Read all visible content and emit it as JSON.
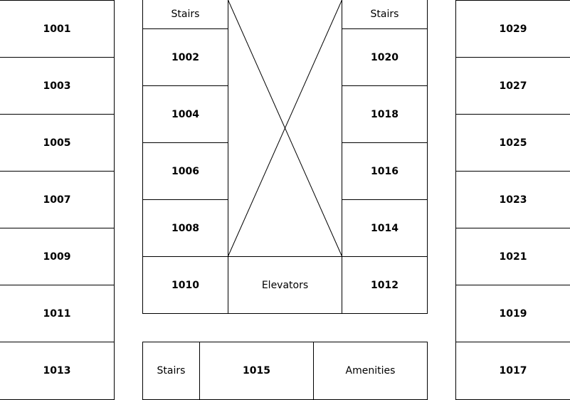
{
  "left_column": [
    "1001",
    "1003",
    "1005",
    "1007",
    "1009",
    "1011",
    "1013"
  ],
  "right_column": [
    "1029",
    "1027",
    "1025",
    "1023",
    "1021",
    "1019",
    "1017"
  ],
  "inner_left": {
    "stairs": "Stairs",
    "rooms": [
      "1002",
      "1004",
      "1006",
      "1008",
      "1010"
    ]
  },
  "inner_right": {
    "stairs": "Stairs",
    "rooms": [
      "1020",
      "1018",
      "1016",
      "1014",
      "1012"
    ]
  },
  "elevators": "Elevators",
  "bottom_row": {
    "stairs": "Stairs",
    "room": "1015",
    "amenities": "Amenities"
  }
}
